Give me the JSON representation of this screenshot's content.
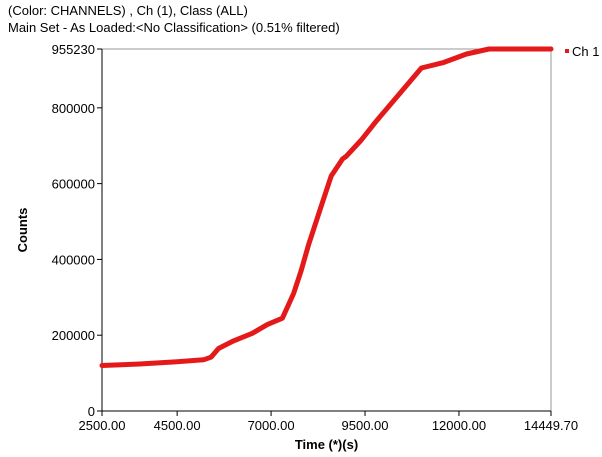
{
  "chart_data": {
    "type": "line",
    "title": "(Color: CHANNELS) , Ch (1), Class (ALL)",
    "subtitle": "Main Set - As Loaded:<No Classification> (0.51% filtered)",
    "xlabel": "Time (*)(s)",
    "ylabel": "Counts",
    "xlim": [
      2500.0,
      14449.7
    ],
    "ylim": [
      0,
      955230
    ],
    "x_ticks": [
      2500.0,
      4500.0,
      7000.0,
      9500.0,
      12000.0,
      14449.7
    ],
    "x_tick_labels": [
      "2500.00",
      "4500.00",
      "7000.00",
      "9500.00",
      "12000.00",
      "14449.70"
    ],
    "y_ticks": [
      0,
      200000,
      400000,
      600000,
      800000,
      955230
    ],
    "y_tick_labels": [
      "0",
      "200000",
      "400000",
      "600000",
      "800000",
      "955230"
    ],
    "grid": false,
    "legend_position": "top-right",
    "series": [
      {
        "name": "Ch 1",
        "color": "#e41a1a",
        "x": [
          2500,
          3500,
          4500,
          5200,
          5400,
          5600,
          6000,
          6500,
          6900,
          7300,
          7600,
          7800,
          8000,
          8300,
          8600,
          8900,
          9000,
          9400,
          9800,
          10400,
          11000,
          11600,
          12200,
          12800,
          13500,
          14449.7
        ],
        "y": [
          120000,
          124000,
          130000,
          135000,
          142000,
          165000,
          185000,
          205000,
          228000,
          245000,
          310000,
          370000,
          440000,
          530000,
          620000,
          665000,
          672000,
          715000,
          765000,
          835000,
          905000,
          920000,
          942000,
          955230,
          955230,
          955230
        ]
      }
    ]
  }
}
